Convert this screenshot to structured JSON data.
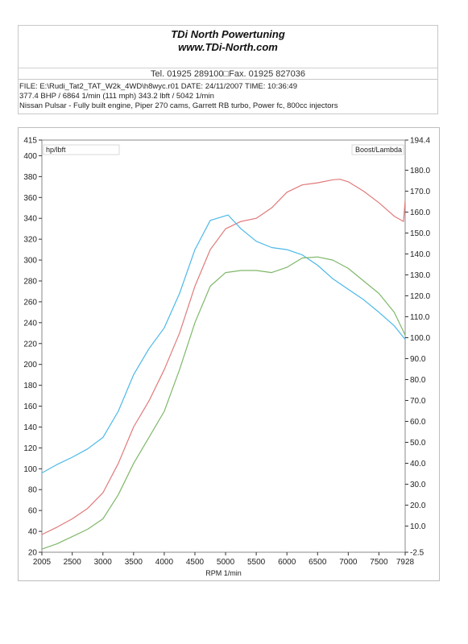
{
  "header": {
    "company_line1": "TDi North Powertuning",
    "company_line2": "www.TDi-North.com",
    "contact": "Tel. 01925 289100□Fax. 01925 827036"
  },
  "run_info": {
    "line1": "FILE: E:\\Rudi_Tat2_TAT_W2k_4WD\\h8wyc.r01  DATE: 24/11/2007  TIME: 10:36:49",
    "line2": "377.4 BHP / 6864 1/min (111 mph)    343.2 lbft / 5042 1/min",
    "line3": "Nissan Pulsar - Fully built engine, Piper 270 cams, Garrett RB turbo, Power fc, 800cc injectors"
  },
  "chart_data": {
    "type": "line",
    "xlabel": "RPM  1/min",
    "left_axis_label": "hp/lbft",
    "right_axis_label": "Boost/Lambda",
    "xlim": [
      2005,
      7928
    ],
    "x_ticks": [
      "2005",
      "2500",
      "3000",
      "3500",
      "4000",
      "4500",
      "5000",
      "5500",
      "6000",
      "6500",
      "7000",
      "7500",
      "7928"
    ],
    "ylim_left": [
      20,
      415
    ],
    "y_ticks_left": [
      "20",
      "40",
      "60",
      "80",
      "100",
      "120",
      "140",
      "160",
      "180",
      "200",
      "220",
      "240",
      "260",
      "280",
      "300",
      "320",
      "340",
      "360",
      "380",
      "400",
      "415"
    ],
    "ylim_right": [
      -2.5,
      194.4
    ],
    "y_ticks_right": [
      "-2.5",
      "10.0",
      "20.0",
      "30.0",
      "40.0",
      "50.0",
      "60.0",
      "70.0",
      "80.0",
      "90.0",
      "100.0",
      "110.0",
      "120.0",
      "130.0",
      "140.0",
      "150.0",
      "160.0",
      "170.0",
      "180.0",
      "194.4"
    ],
    "colors": {
      "power": "#e07a7a",
      "torque": "#4cb8e8",
      "wheel": "#7fb86a",
      "frame": "#888888"
    },
    "series": [
      {
        "color_key": "power",
        "x": [
          2005,
          2250,
          2500,
          2750,
          3000,
          3250,
          3500,
          3750,
          4000,
          4250,
          4500,
          4750,
          5000,
          5250,
          5500,
          5750,
          6000,
          6250,
          6500,
          6750,
          6864,
          7000,
          7250,
          7500,
          7750,
          7900,
          7928
        ],
        "y": [
          37,
          44,
          52,
          62,
          77,
          105,
          140,
          165,
          195,
          230,
          275,
          310,
          330,
          337,
          340,
          350,
          365,
          372,
          374,
          377,
          377.4,
          375,
          366,
          355,
          342,
          337,
          357
        ]
      },
      {
        "color_key": "torque",
        "x": [
          2005,
          2250,
          2500,
          2750,
          3000,
          3250,
          3500,
          3750,
          4000,
          4250,
          4500,
          4750,
          5042,
          5250,
          5500,
          5750,
          6000,
          6250,
          6500,
          6750,
          7000,
          7250,
          7500,
          7750,
          7928
        ],
        "y": [
          96,
          104,
          111,
          119,
          130,
          155,
          190,
          215,
          235,
          268,
          310,
          338,
          343.2,
          330,
          318,
          312,
          310,
          305,
          295,
          282,
          272,
          262,
          250,
          237,
          224
        ]
      },
      {
        "color_key": "wheel",
        "x": [
          2005,
          2250,
          2500,
          2750,
          3000,
          3250,
          3500,
          3750,
          4000,
          4250,
          4500,
          4750,
          5000,
          5250,
          5500,
          5750,
          6000,
          6250,
          6500,
          6750,
          7000,
          7250,
          7500,
          7750,
          7928
        ],
        "y": [
          23,
          28,
          35,
          42,
          52,
          75,
          105,
          130,
          155,
          195,
          240,
          275,
          288,
          290,
          290,
          288,
          293,
          302,
          303,
          300,
          292,
          280,
          268,
          250,
          228
        ]
      }
    ]
  }
}
